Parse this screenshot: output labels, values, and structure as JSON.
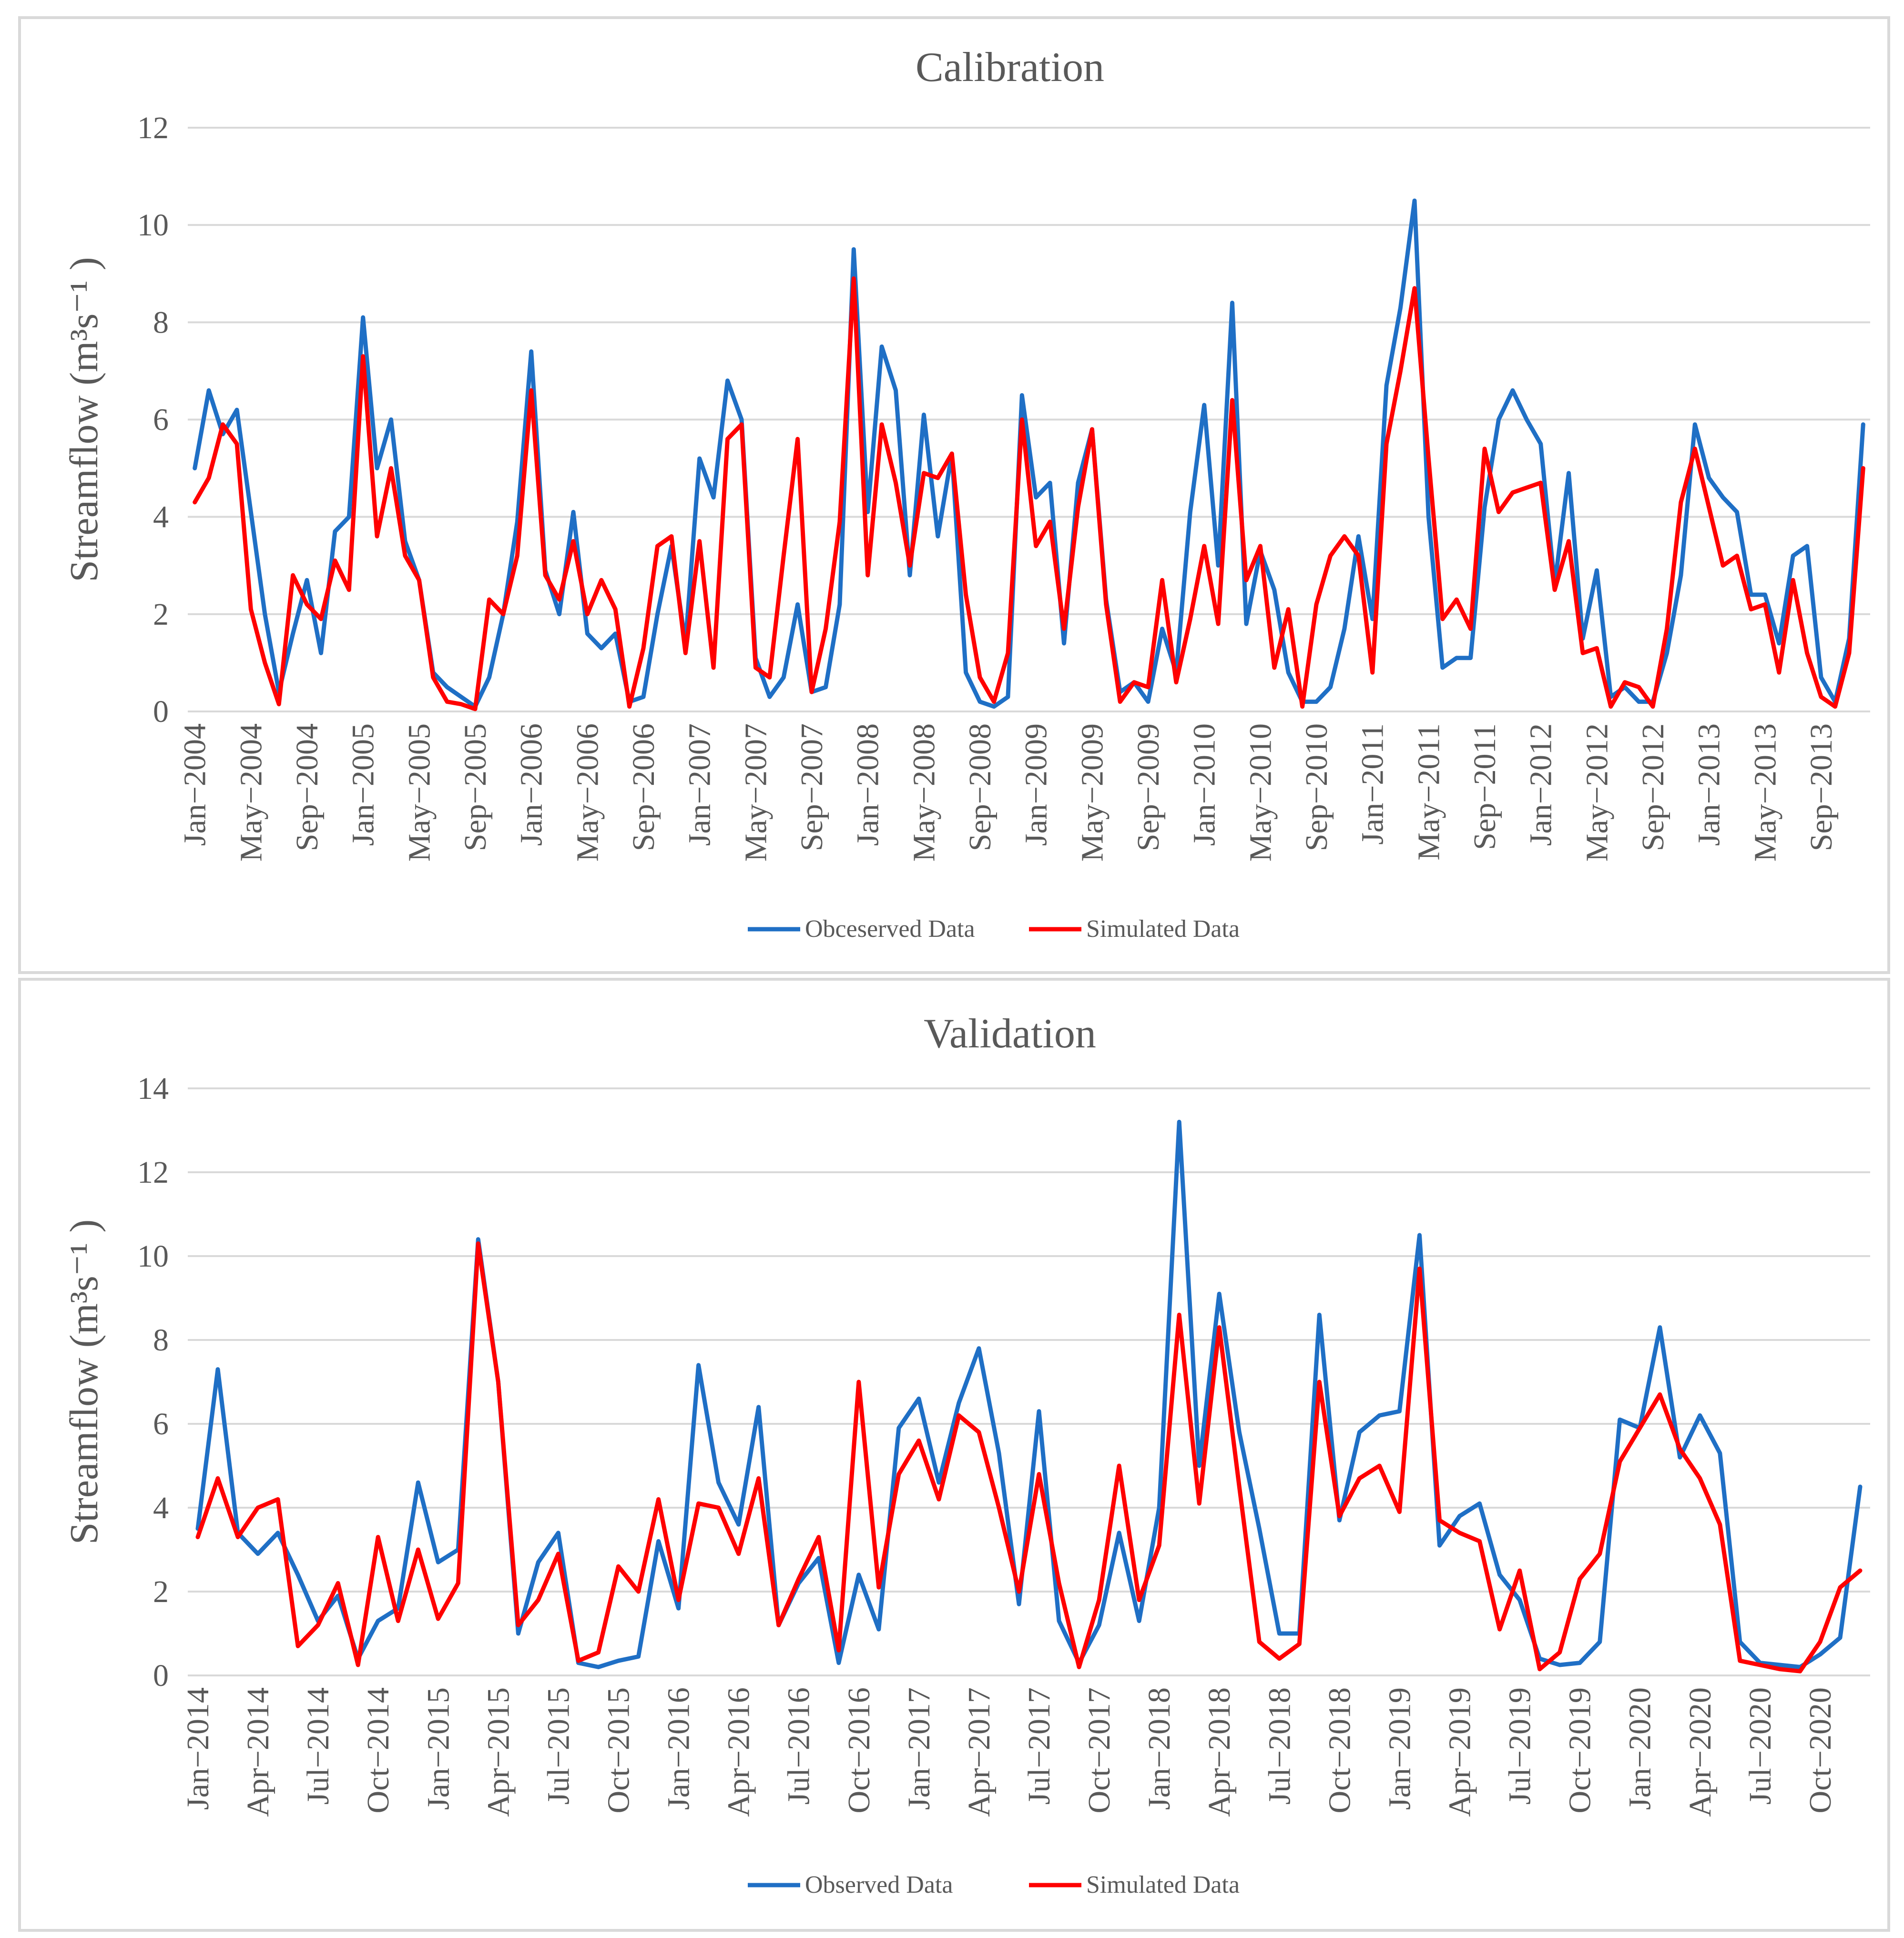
{
  "chart_data": [
    {
      "type": "line",
      "title": "Calibration",
      "ylabel": "Streamflow (m³s⁻¹ )",
      "xlabel": "",
      "ylim": [
        0,
        12
      ],
      "yticks": [
        0,
        2,
        4,
        6,
        8,
        10,
        12
      ],
      "xtick_labels": [
        "Jan−2004",
        "May−2004",
        "Sep−2004",
        "Jan−2005",
        "May−2005",
        "Sep−2005",
        "Jan−2006",
        "May−2006",
        "Sep−2006",
        "Jan−2007",
        "May−2007",
        "Sep−2007",
        "Jan−2008",
        "May−2008",
        "Sep−2008",
        "Jan−2009",
        "May−2009",
        "Sep−2009",
        "Jan−2010",
        "May−2010",
        "Sep−2010",
        "Jan−2011",
        "May−2011",
        "Sep−2011",
        "Jan−2012",
        "May−2012",
        "Sep−2012",
        "Jan−2013",
        "May−2013",
        "Sep−2013"
      ],
      "tick_every": 4,
      "series": [
        {
          "name": "Obceserved Data",
          "color": "#1f6fc5",
          "values": [
            5.0,
            6.6,
            5.7,
            6.2,
            4.1,
            2.0,
            0.4,
            1.6,
            2.7,
            1.2,
            3.7,
            4.0,
            8.1,
            5.0,
            6.0,
            3.5,
            2.7,
            0.8,
            0.5,
            0.3,
            0.1,
            0.7,
            2.0,
            3.9,
            7.4,
            2.9,
            2.0,
            4.1,
            1.6,
            1.3,
            1.6,
            0.2,
            0.3,
            2.0,
            3.4,
            1.4,
            5.2,
            4.4,
            6.8,
            6.0,
            1.1,
            0.3,
            0.7,
            2.2,
            0.4,
            0.5,
            2.2,
            9.5,
            4.1,
            7.5,
            6.6,
            2.8,
            6.1,
            3.6,
            5.3,
            0.8,
            0.2,
            0.1,
            0.3,
            6.5,
            4.4,
            4.7,
            1.4,
            4.7,
            5.8,
            2.3,
            0.4,
            0.6,
            0.2,
            1.7,
            0.8,
            4.1,
            6.3,
            3.0,
            8.4,
            1.8,
            3.3,
            2.5,
            0.8,
            0.2,
            0.2,
            0.5,
            1.7,
            3.6,
            1.9,
            6.7,
            8.3,
            10.5,
            4.0,
            0.9,
            1.1,
            1.1,
            4.2,
            6.0,
            6.6,
            6.0,
            5.5,
            2.6,
            4.9,
            1.5,
            2.9,
            0.3,
            0.5,
            0.2,
            0.2,
            1.2,
            2.8,
            5.9,
            4.8,
            4.4,
            4.1,
            2.4,
            2.4,
            1.4,
            3.2,
            3.4,
            0.7,
            0.2,
            1.5,
            5.9
          ]
        },
        {
          "name": "Simulated Data",
          "color": "#ff0000",
          "values": [
            4.3,
            4.8,
            5.9,
            5.5,
            2.1,
            1.0,
            0.15,
            2.8,
            2.2,
            1.9,
            3.1,
            2.5,
            7.3,
            3.6,
            5.0,
            3.2,
            2.7,
            0.7,
            0.2,
            0.15,
            0.05,
            2.3,
            2.0,
            3.2,
            6.6,
            2.8,
            2.3,
            3.5,
            2.0,
            2.7,
            2.1,
            0.1,
            1.3,
            3.4,
            3.6,
            1.2,
            3.5,
            0.9,
            5.6,
            5.9,
            0.9,
            0.7,
            3.2,
            5.6,
            0.4,
            1.7,
            3.9,
            8.9,
            2.8,
            5.9,
            4.7,
            3.0,
            4.9,
            4.8,
            5.3,
            2.4,
            0.7,
            0.2,
            1.2,
            6.0,
            3.4,
            3.9,
            1.7,
            4.2,
            5.8,
            2.2,
            0.2,
            0.6,
            0.5,
            2.7,
            0.6,
            1.9,
            3.4,
            1.8,
            6.4,
            2.7,
            3.4,
            0.9,
            2.1,
            0.1,
            2.2,
            3.2,
            3.6,
            3.2,
            0.8,
            5.5,
            7.0,
            8.7,
            5.2,
            1.9,
            2.3,
            1.7,
            5.4,
            4.1,
            4.5,
            4.6,
            4.7,
            2.5,
            3.5,
            1.2,
            1.3,
            0.1,
            0.6,
            0.5,
            0.1,
            1.7,
            4.3,
            5.4,
            4.2,
            3.0,
            3.2,
            2.1,
            2.2,
            0.8,
            2.7,
            1.2,
            0.3,
            0.1,
            1.2,
            5.0
          ]
        }
      ],
      "legend": "bottom"
    },
    {
      "type": "line",
      "title": "Validation",
      "ylabel": "Streamflow (m³s⁻¹ )",
      "xlabel": "",
      "ylim": [
        0,
        14
      ],
      "yticks": [
        0,
        2,
        4,
        6,
        8,
        10,
        12,
        14
      ],
      "xtick_labels": [
        "Jan−2014",
        "Apr−2014",
        "Jul−2014",
        "Oct−2014",
        "Jan−2015",
        "Apr−2015",
        "Jul−2015",
        "Oct−2015",
        "Jan−2016",
        "Apr−2016",
        "Jul−2016",
        "Oct−2016",
        "Jan−2017",
        "Apr−2017",
        "Jul−2017",
        "Oct−2017",
        "Jan−2018",
        "Apr−2018",
        "Jul−2018",
        "Oct−2018",
        "Jan−2019",
        "Apr−2019",
        "Jul−2019",
        "Oct−2019",
        "Jan−2020",
        "Apr−2020",
        "Jul−2020",
        "Oct−2020"
      ],
      "tick_every": 3,
      "series": [
        {
          "name": "Observed Data",
          "color": "#1f6fc5",
          "values": [
            3.5,
            7.3,
            3.4,
            2.9,
            3.4,
            2.4,
            1.3,
            1.9,
            0.4,
            1.3,
            1.6,
            4.6,
            2.7,
            3.0,
            10.4,
            7.0,
            1.0,
            2.7,
            3.4,
            0.3,
            0.2,
            0.35,
            0.45,
            3.2,
            1.6,
            7.4,
            4.6,
            3.6,
            6.4,
            1.2,
            2.2,
            2.8,
            0.3,
            2.4,
            1.1,
            5.9,
            6.6,
            4.6,
            6.5,
            7.8,
            5.3,
            1.7,
            6.3,
            1.3,
            0.3,
            1.2,
            3.4,
            1.3,
            4.0,
            13.2,
            5.0,
            9.1,
            5.8,
            3.5,
            1.0,
            1.0,
            8.6,
            3.7,
            5.8,
            6.2,
            6.3,
            10.5,
            3.1,
            3.8,
            4.1,
            2.4,
            1.8,
            0.4,
            0.25,
            0.3,
            0.8,
            6.1,
            5.9,
            8.3,
            5.2,
            6.2,
            5.3,
            0.8,
            0.3,
            0.25,
            0.2,
            0.5,
            0.9,
            4.5
          ]
        },
        {
          "name": "Simulated Data",
          "color": "#ff0000",
          "values": [
            3.3,
            4.7,
            3.3,
            4.0,
            4.2,
            0.7,
            1.2,
            2.2,
            0.25,
            3.3,
            1.3,
            3.0,
            1.35,
            2.2,
            10.3,
            7.0,
            1.2,
            1.8,
            2.9,
            0.35,
            0.55,
            2.6,
            2.0,
            4.2,
            1.8,
            4.1,
            4.0,
            2.9,
            4.7,
            1.2,
            2.3,
            3.3,
            0.6,
            7.0,
            2.1,
            4.8,
            5.6,
            4.2,
            6.2,
            5.8,
            4.0,
            2.0,
            4.8,
            2.2,
            0.2,
            1.8,
            5.0,
            1.8,
            3.1,
            8.6,
            4.1,
            8.3,
            4.5,
            0.8,
            0.4,
            0.75,
            7.0,
            3.8,
            4.7,
            5.0,
            3.9,
            9.7,
            3.7,
            3.4,
            3.2,
            1.1,
            2.5,
            0.15,
            0.55,
            2.3,
            2.9,
            5.1,
            5.9,
            6.7,
            5.4,
            4.7,
            3.6,
            0.35,
            0.25,
            0.15,
            0.1,
            0.8,
            2.1,
            2.5
          ]
        }
      ],
      "legend": "bottom"
    }
  ]
}
